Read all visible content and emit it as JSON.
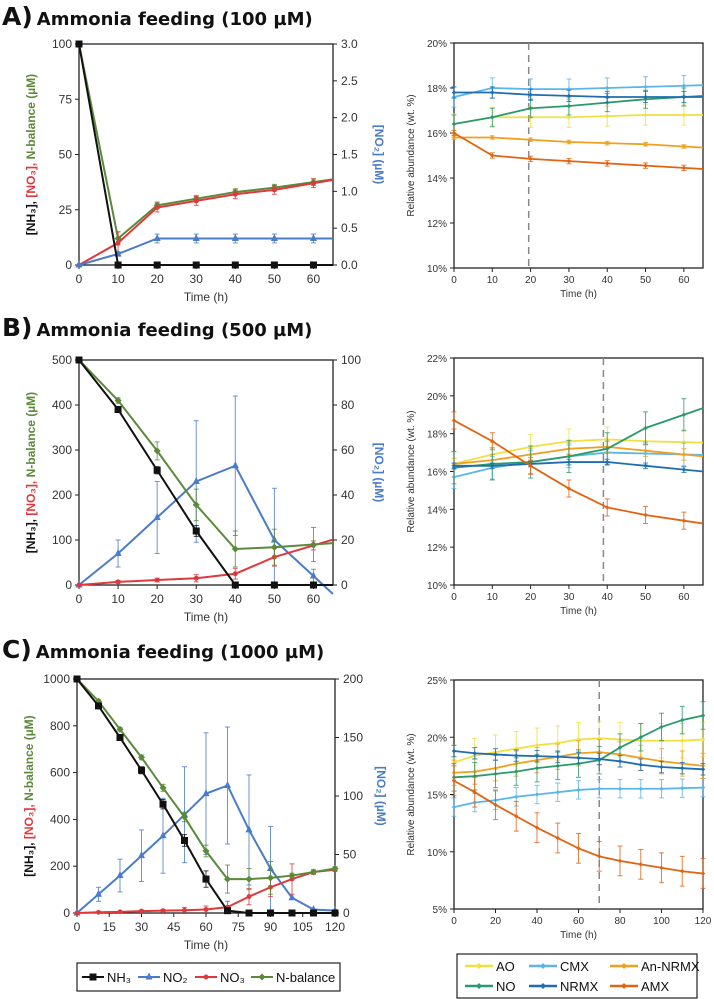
{
  "panels": [
    {
      "letter": "A)",
      "title": "Ammonia feeding (100 µM)"
    },
    {
      "letter": "B)",
      "title": "Ammonia feeding (500 µM)"
    },
    {
      "letter": "C)",
      "title": "Ammonia feeding (1000 µM)"
    }
  ],
  "colors": {
    "NH3": "#111111",
    "NO2": "#4a7cc7",
    "NO3": "#e0383c",
    "N-balance": "#5a8a3a",
    "AO": "#f0e040",
    "CMX": "#5ab6ea",
    "An-NRMX": "#f0a020",
    "NO": "#2a9a6c",
    "NRMX": "#1f6db0",
    "AMX": "#e06414",
    "dashed_line": "#888888"
  },
  "legend_left": [
    {
      "label": "NH₃",
      "series": "NH3",
      "marker": "square"
    },
    {
      "label": "NO₂",
      "series": "NO2",
      "marker": "triangle"
    },
    {
      "label": "NO₃",
      "series": "NO3",
      "marker": "dot"
    },
    {
      "label": "N-balance",
      "series": "N-balance",
      "marker": "diamond"
    }
  ],
  "legend_right": [
    {
      "label": "AO",
      "series": "AO"
    },
    {
      "label": "CMX",
      "series": "CMX"
    },
    {
      "label": "An-NRMX",
      "series": "An-NRMX"
    },
    {
      "label": "NO",
      "series": "NO"
    },
    {
      "label": "NRMX",
      "series": "NRMX"
    },
    {
      "label": "AMX",
      "series": "AMX"
    }
  ],
  "chart_data": [
    {
      "type": "line",
      "panel": "A",
      "side": "left",
      "xlabel": "Time (h)",
      "xlim": [
        0,
        65
      ],
      "xticks": [
        0,
        10,
        20,
        30,
        40,
        50,
        60
      ],
      "ylabel_parts": [
        {
          "text": "[NH₃], ",
          "series": "NH3"
        },
        {
          "text": "[NO₃], ",
          "series": "NO3"
        },
        {
          "text": "N-balance",
          "series": "N-balance"
        },
        {
          "text": " (µM)",
          "series": "N-balance"
        }
      ],
      "ylim": [
        0,
        100
      ],
      "yticks": [
        "0",
        "25",
        "50",
        "75",
        "100"
      ],
      "y2label": "[NO₂] (µM)",
      "y2lim": [
        0,
        3.0
      ],
      "y2ticks": [
        "0.0",
        "0.5",
        "1.0",
        "1.5",
        "2.0",
        "2.5",
        "3.0"
      ],
      "x": [
        0,
        10,
        20,
        30,
        40,
        50,
        60
      ],
      "series": [
        {
          "name": "N-balance",
          "axis": "left",
          "marker": "diamond",
          "values": [
            100,
            12,
            27,
            30,
            33,
            35,
            37.5
          ],
          "err": [
            0,
            3,
            1.5,
            1.5,
            1.5,
            1.5,
            1.5
          ]
        },
        {
          "name": "NO3",
          "axis": "left",
          "marker": "dot",
          "values": [
            0,
            10,
            26,
            29,
            32,
            34,
            37
          ],
          "err": [
            0,
            5,
            2,
            2,
            2,
            2,
            2
          ]
        },
        {
          "name": "NO2",
          "axis": "right",
          "marker": "triangle",
          "values": [
            0,
            0.15,
            0.36,
            0.36,
            0.36,
            0.36,
            0.36
          ],
          "err": [
            0,
            0.03,
            0.06,
            0.06,
            0.06,
            0.06,
            0.06
          ]
        },
        {
          "name": "NH3",
          "axis": "left",
          "marker": "square",
          "values": [
            100,
            0,
            0,
            0,
            0,
            0,
            0
          ],
          "err": [
            0,
            0,
            0,
            0,
            0,
            0,
            0
          ]
        }
      ]
    },
    {
      "type": "line",
      "panel": "A",
      "side": "right",
      "xlabel": "Time (h)",
      "xlim": [
        0,
        65
      ],
      "xticks": [
        0,
        10,
        20,
        30,
        40,
        50,
        60
      ],
      "ylabel": "Relative abundance (wt. %)",
      "ylim": [
        10,
        20
      ],
      "yticks": [
        "10%",
        "12%",
        "14%",
        "16%",
        "18%",
        "20%"
      ],
      "ystep": 2,
      "vline": 19.5,
      "x": [
        0,
        10,
        20,
        30,
        40,
        50,
        60
      ],
      "series": [
        {
          "name": "AO",
          "values": [
            16.4,
            16.7,
            16.7,
            16.7,
            16.75,
            16.8,
            16.8
          ],
          "err": 0.45
        },
        {
          "name": "CMX",
          "values": [
            17.6,
            18.0,
            17.95,
            17.95,
            18.0,
            18.05,
            18.1
          ],
          "err": 0.45
        },
        {
          "name": "An-NRMX",
          "values": [
            15.8,
            15.8,
            15.7,
            15.6,
            15.55,
            15.5,
            15.4
          ],
          "err": 0.08
        },
        {
          "name": "NO",
          "values": [
            16.4,
            16.7,
            17.1,
            17.2,
            17.35,
            17.5,
            17.6
          ],
          "err": 0.4
        },
        {
          "name": "NRMX",
          "values": [
            17.8,
            17.8,
            17.7,
            17.65,
            17.6,
            17.6,
            17.6
          ],
          "err": 0.25
        },
        {
          "name": "AMX",
          "values": [
            16.0,
            15.0,
            14.85,
            14.75,
            14.65,
            14.55,
            14.45
          ],
          "err": 0.12
        }
      ]
    },
    {
      "type": "line",
      "panel": "B",
      "side": "left",
      "xlabel": "Time (h)",
      "xlim": [
        0,
        65
      ],
      "xticks": [
        0,
        10,
        20,
        30,
        40,
        50,
        60
      ],
      "ylabel_parts": [
        {
          "text": "[NH₃], ",
          "series": "NH3"
        },
        {
          "text": "[NO₃], ",
          "series": "NO3"
        },
        {
          "text": "N-balance",
          "series": "N-balance"
        },
        {
          "text": " (µM)",
          "series": "N-balance"
        }
      ],
      "ylim": [
        0,
        500
      ],
      "yticks": [
        "0",
        "100",
        "200",
        "300",
        "400",
        "500"
      ],
      "y2label": "[NO₂] (µM)",
      "y2lim": [
        0,
        100
      ],
      "y2ticks": [
        "0",
        "20",
        "40",
        "60",
        "80",
        "100"
      ],
      "x": [
        0,
        10,
        20,
        30,
        40,
        50,
        60
      ],
      "series": [
        {
          "name": "NO2",
          "axis": "right",
          "marker": "triangle",
          "values": [
            0,
            14,
            30,
            46,
            53,
            20,
            4
          ],
          "err": [
            0,
            6,
            16,
            27,
            31,
            23,
            3
          ]
        },
        {
          "name": "NO3",
          "axis": "left",
          "marker": "dot",
          "values": [
            0,
            7,
            11,
            15,
            25,
            62,
            88
          ],
          "err": [
            0,
            3,
            4,
            8,
            12,
            20,
            10
          ]
        },
        {
          "name": "N-balance",
          "axis": "left",
          "marker": "diamond",
          "values": [
            500,
            410,
            298,
            178,
            80,
            84,
            90
          ],
          "err": [
            0,
            6,
            20,
            35,
            40,
            40,
            38
          ]
        },
        {
          "name": "NH3",
          "axis": "left",
          "marker": "square",
          "values": [
            500,
            390,
            255,
            120,
            0,
            0,
            0
          ],
          "err": [
            0,
            4,
            8,
            12,
            0,
            0,
            0
          ]
        }
      ]
    },
    {
      "type": "line",
      "panel": "B",
      "side": "right",
      "xlabel": "Time (h)",
      "xlim": [
        0,
        65
      ],
      "xticks": [
        0,
        10,
        20,
        30,
        40,
        50,
        60
      ],
      "ylabel": "Relative abundance (wt. %)",
      "ylim": [
        10,
        22
      ],
      "yticks": [
        "10%",
        "12%",
        "14%",
        "16%",
        "18%",
        "20%",
        "22%"
      ],
      "ystep": 2,
      "vline": 39,
      "x": [
        0,
        10,
        20,
        30,
        40,
        50,
        60
      ],
      "series": [
        {
          "name": "AO",
          "values": [
            16.4,
            16.9,
            17.3,
            17.6,
            17.7,
            17.6,
            17.55
          ],
          "err": 0.65
        },
        {
          "name": "CMX",
          "values": [
            15.7,
            16.2,
            16.5,
            16.8,
            17.0,
            16.95,
            16.9
          ],
          "err": 0.6
        },
        {
          "name": "An-NRMX",
          "values": [
            16.4,
            16.6,
            16.9,
            17.2,
            17.3,
            17.1,
            16.9
          ],
          "err": 0.3
        },
        {
          "name": "NO",
          "values": [
            16.2,
            16.4,
            16.5,
            16.8,
            17.2,
            18.3,
            19.0
          ],
          "err": 0.85
        },
        {
          "name": "NRMX",
          "values": [
            16.3,
            16.3,
            16.4,
            16.5,
            16.5,
            16.3,
            16.1
          ],
          "err": 0.15
        },
        {
          "name": "AMX",
          "values": [
            18.7,
            17.6,
            16.3,
            15.1,
            14.1,
            13.7,
            13.4
          ],
          "err": 0.45
        }
      ]
    },
    {
      "type": "line",
      "panel": "C",
      "side": "left",
      "xlabel": "Time (h)",
      "xlim": [
        0,
        120
      ],
      "xticks": [
        0,
        15,
        30,
        45,
        60,
        75,
        90,
        105,
        120
      ],
      "ylabel_parts": [
        {
          "text": "[NH₃], ",
          "series": "NH3"
        },
        {
          "text": "[NO₃], ",
          "series": "NO3"
        },
        {
          "text": "N-balance",
          "series": "N-balance"
        },
        {
          "text": " (µM)",
          "series": "N-balance"
        }
      ],
      "ylim": [
        0,
        1000
      ],
      "yticks": [
        "0",
        "200",
        "400",
        "600",
        "800",
        "1000"
      ],
      "y2label": "[NO₂] (µM)",
      "y2lim": [
        0,
        200
      ],
      "y2ticks": [
        "0",
        "50",
        "100",
        "150",
        "200"
      ],
      "x": [
        0,
        10,
        20,
        30,
        40,
        50,
        60,
        70,
        80,
        90,
        100,
        110,
        120
      ],
      "series": [
        {
          "name": "NO2",
          "axis": "right",
          "marker": "triangle",
          "values": [
            0,
            16,
            32,
            49,
            66,
            84,
            102,
            109,
            71,
            38,
            13,
            3,
            2
          ],
          "err": [
            0,
            6,
            14,
            22,
            32,
            41,
            52,
            50,
            47,
            36,
            0,
            0,
            0
          ]
        },
        {
          "name": "NO3",
          "axis": "left",
          "marker": "dot",
          "values": [
            0,
            3,
            5,
            8,
            10,
            12,
            15,
            25,
            70,
            110,
            145,
            175,
            185
          ],
          "err": [
            0,
            3,
            3,
            5,
            5,
            12,
            15,
            25,
            35,
            40,
            65,
            10,
            8
          ]
        },
        {
          "name": "N-balance",
          "axis": "left",
          "marker": "diamond",
          "values": [
            1000,
            905,
            785,
            665,
            535,
            410,
            265,
            145,
            145,
            150,
            160,
            175,
            190
          ],
          "err": [
            0,
            8,
            8,
            10,
            15,
            20,
            25,
            60,
            45,
            70,
            10,
            8,
            8
          ]
        },
        {
          "name": "NH3",
          "axis": "left",
          "marker": "square",
          "values": [
            1000,
            885,
            750,
            610,
            465,
            310,
            145,
            10,
            0,
            0,
            0,
            0,
            0
          ],
          "err": [
            0,
            8,
            10,
            15,
            20,
            25,
            35,
            10,
            0,
            0,
            0,
            0,
            0
          ]
        }
      ]
    },
    {
      "type": "line",
      "panel": "C",
      "side": "right",
      "xlabel": "Time (h)",
      "xlim": [
        0,
        120
      ],
      "xticks": [
        0,
        20,
        40,
        60,
        80,
        100,
        120
      ],
      "ylabel": "Relative abundance (wt. %)",
      "ylim": [
        5,
        25
      ],
      "yticks": [
        "5%",
        "10%",
        "15%",
        "20%",
        "25%"
      ],
      "ystep": 5,
      "vline": 70,
      "x": [
        0,
        10,
        20,
        30,
        40,
        50,
        60,
        70,
        80,
        90,
        100,
        110,
        120
      ],
      "series": [
        {
          "name": "AO",
          "values": [
            17.8,
            18.4,
            18.7,
            19.0,
            19.3,
            19.5,
            19.8,
            19.9,
            19.8,
            19.7,
            19.7,
            19.7,
            19.8
          ],
          "err": 1.5
        },
        {
          "name": "CMX",
          "values": [
            13.9,
            14.3,
            14.5,
            14.8,
            15.0,
            15.2,
            15.4,
            15.5,
            15.5,
            15.5,
            15.5,
            15.55,
            15.6
          ],
          "err": 0.8
        },
        {
          "name": "An-NRMX",
          "values": [
            16.9,
            17.0,
            17.3,
            17.7,
            18.0,
            18.3,
            18.6,
            18.7,
            18.5,
            18.2,
            17.9,
            17.7,
            17.5
          ],
          "err": 1.1
        },
        {
          "name": "NO",
          "values": [
            16.5,
            16.6,
            16.8,
            17.0,
            17.3,
            17.5,
            17.7,
            18.0,
            19.1,
            20.0,
            20.9,
            21.5,
            21.9
          ],
          "err": 1.2
        },
        {
          "name": "NRMX",
          "values": [
            18.8,
            18.6,
            18.5,
            18.4,
            18.35,
            18.3,
            18.2,
            18.1,
            17.9,
            17.6,
            17.4,
            17.3,
            17.2
          ],
          "err": 0.5
        },
        {
          "name": "AMX",
          "values": [
            16.2,
            15.2,
            14.1,
            13.1,
            12.1,
            11.2,
            10.3,
            9.6,
            9.2,
            8.9,
            8.6,
            8.3,
            8.1
          ],
          "err": 1.3
        }
      ]
    }
  ]
}
